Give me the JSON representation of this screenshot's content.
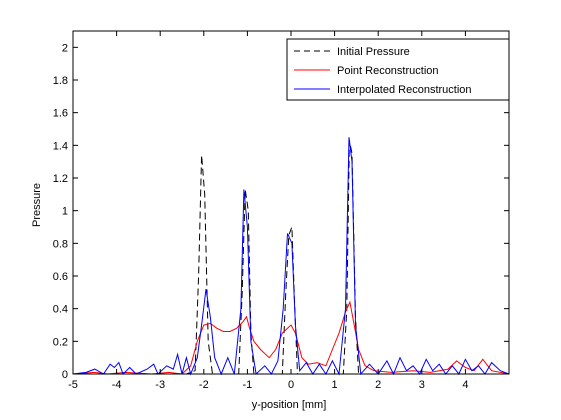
{
  "chart_data": {
    "type": "line",
    "title": "",
    "xlabel": "y-position [mm]",
    "ylabel": "Pressure",
    "xlim": [
      -5,
      5
    ],
    "ylim": [
      0,
      2.1
    ],
    "xticks": [
      -5,
      -4,
      -3,
      -2,
      -1,
      0,
      1,
      2,
      3,
      4
    ],
    "yticks": [
      0,
      0.2,
      0.4,
      0.6,
      0.8,
      1,
      1.2,
      1.4,
      1.6,
      1.8,
      2
    ],
    "xtick_labels": [
      "-5",
      "-4",
      "-3",
      "-2",
      "-1",
      "0",
      "1",
      "2",
      "3",
      "4"
    ],
    "ytick_labels": [
      "0",
      "0.2",
      "0.4",
      "0.6",
      "0.8",
      "1",
      "1.2",
      "1.4",
      "1.6",
      "1.8",
      "2"
    ],
    "grid": false,
    "legend_position": "top-right",
    "series": [
      {
        "name": "Initial Pressure",
        "color": "#000000",
        "dash": "dashed",
        "points": [
          [
            -5,
            0
          ],
          [
            -2.4,
            0
          ],
          [
            -2.2,
            0.02
          ],
          [
            -2.12,
            0.6
          ],
          [
            -2.05,
            1.34
          ],
          [
            -1.98,
            1.1
          ],
          [
            -1.9,
            0.2
          ],
          [
            -1.8,
            0
          ],
          [
            -1.2,
            0
          ],
          [
            -1.12,
            0.5
          ],
          [
            -1.05,
            1.13
          ],
          [
            -0.98,
            1.0
          ],
          [
            -0.92,
            0.25
          ],
          [
            -0.85,
            0
          ],
          [
            -0.2,
            0
          ],
          [
            -0.12,
            0.5
          ],
          [
            -0.05,
            0.85
          ],
          [
            0.02,
            0.9
          ],
          [
            0.08,
            0.45
          ],
          [
            0.15,
            0
          ],
          [
            1.2,
            0
          ],
          [
            1.28,
            0.4
          ],
          [
            1.34,
            1.43
          ],
          [
            1.4,
            1.35
          ],
          [
            1.48,
            0.35
          ],
          [
            1.55,
            0
          ],
          [
            5,
            0
          ]
        ]
      },
      {
        "name": "Point Reconstruction",
        "color": "#ff0000",
        "dash": "solid",
        "points": [
          [
            -5,
            0
          ],
          [
            -4.5,
            0.01
          ],
          [
            -4.2,
            0
          ],
          [
            -3.8,
            0.01
          ],
          [
            -3.2,
            0
          ],
          [
            -2.8,
            0.01
          ],
          [
            -2.5,
            0
          ],
          [
            -2.3,
            0.05
          ],
          [
            -2.15,
            0.2
          ],
          [
            -2.0,
            0.3
          ],
          [
            -1.85,
            0.31
          ],
          [
            -1.7,
            0.28
          ],
          [
            -1.55,
            0.26
          ],
          [
            -1.4,
            0.26
          ],
          [
            -1.25,
            0.28
          ],
          [
            -1.1,
            0.32
          ],
          [
            -1.02,
            0.35
          ],
          [
            -0.95,
            0.28
          ],
          [
            -0.85,
            0.2
          ],
          [
            -0.7,
            0.15
          ],
          [
            -0.5,
            0.1
          ],
          [
            -0.35,
            0.15
          ],
          [
            -0.2,
            0.25
          ],
          [
            0.0,
            0.3
          ],
          [
            0.1,
            0.25
          ],
          [
            0.25,
            0.1
          ],
          [
            0.4,
            0.06
          ],
          [
            0.6,
            0.07
          ],
          [
            0.8,
            0.05
          ],
          [
            0.95,
            0.15
          ],
          [
            1.1,
            0.25
          ],
          [
            1.25,
            0.38
          ],
          [
            1.35,
            0.44
          ],
          [
            1.45,
            0.3
          ],
          [
            1.55,
            0.15
          ],
          [
            1.7,
            0.05
          ],
          [
            1.9,
            0.02
          ],
          [
            2.3,
            0.01
          ],
          [
            2.8,
            0.02
          ],
          [
            3.2,
            0.01
          ],
          [
            3.6,
            0.03
          ],
          [
            3.8,
            0.08
          ],
          [
            4.0,
            0.04
          ],
          [
            4.2,
            0.02
          ],
          [
            4.4,
            0.09
          ],
          [
            4.6,
            0.02
          ],
          [
            5,
            0
          ]
        ]
      },
      {
        "name": "Interpolated Reconstruction",
        "color": "#0000ff",
        "dash": "solid",
        "points": [
          [
            -5,
            0
          ],
          [
            -4.7,
            0.01
          ],
          [
            -4.5,
            0.03
          ],
          [
            -4.3,
            0.0
          ],
          [
            -4.15,
            0.06
          ],
          [
            -4.05,
            0.04
          ],
          [
            -3.95,
            0.07
          ],
          [
            -3.85,
            0.0
          ],
          [
            -3.7,
            0.04
          ],
          [
            -3.55,
            0.0
          ],
          [
            -3.3,
            0.03
          ],
          [
            -3.15,
            0.06
          ],
          [
            -3.05,
            0.0
          ],
          [
            -2.85,
            0.05
          ],
          [
            -2.7,
            0.03
          ],
          [
            -2.6,
            0.12
          ],
          [
            -2.5,
            0.0
          ],
          [
            -2.4,
            0.1
          ],
          [
            -2.3,
            0.0
          ],
          [
            -2.15,
            0.1
          ],
          [
            -2.05,
            0.3
          ],
          [
            -1.95,
            0.52
          ],
          [
            -1.85,
            0.35
          ],
          [
            -1.75,
            0.1
          ],
          [
            -1.6,
            0.0
          ],
          [
            -1.45,
            0.1
          ],
          [
            -1.3,
            0.0
          ],
          [
            -1.15,
            0.4
          ],
          [
            -1.08,
            1.13
          ],
          [
            -1.0,
            0.9
          ],
          [
            -0.92,
            0.2
          ],
          [
            -0.8,
            0.0
          ],
          [
            -0.6,
            0.05
          ],
          [
            -0.45,
            0.0
          ],
          [
            -0.3,
            0.08
          ],
          [
            -0.18,
            0.4
          ],
          [
            -0.08,
            0.86
          ],
          [
            0.02,
            0.8
          ],
          [
            0.1,
            0.3
          ],
          [
            0.2,
            0.02
          ],
          [
            0.35,
            0.07
          ],
          [
            0.5,
            0.0
          ],
          [
            0.65,
            0.06
          ],
          [
            0.8,
            0.0
          ],
          [
            0.95,
            0.08
          ],
          [
            1.1,
            0.0
          ],
          [
            1.25,
            0.4
          ],
          [
            1.33,
            1.45
          ],
          [
            1.4,
            1.3
          ],
          [
            1.48,
            0.3
          ],
          [
            1.6,
            0.0
          ],
          [
            1.8,
            0.06
          ],
          [
            2.0,
            0.0
          ],
          [
            2.2,
            0.08
          ],
          [
            2.35,
            0.0
          ],
          [
            2.5,
            0.1
          ],
          [
            2.65,
            0.02
          ],
          [
            2.8,
            0.05
          ],
          [
            2.95,
            0.0
          ],
          [
            3.1,
            0.09
          ],
          [
            3.25,
            0.02
          ],
          [
            3.4,
            0.06
          ],
          [
            3.55,
            0.0
          ],
          [
            3.7,
            0.05
          ],
          [
            3.85,
            0.0
          ],
          [
            4.0,
            0.09
          ],
          [
            4.15,
            0.02
          ],
          [
            4.3,
            0.05
          ],
          [
            4.45,
            0.0
          ],
          [
            4.6,
            0.07
          ],
          [
            4.8,
            0.02
          ],
          [
            5,
            0
          ]
        ]
      }
    ]
  }
}
